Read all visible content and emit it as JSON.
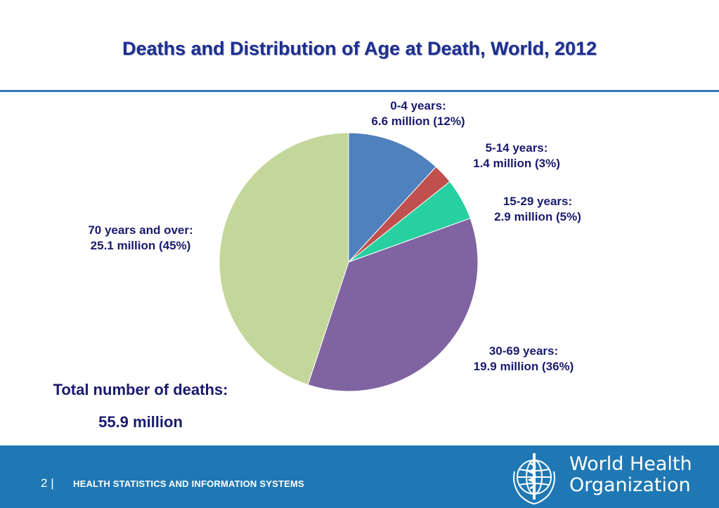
{
  "slide": {
    "page_number": "2",
    "footer_text": "HEALTH STATISTICS AND INFORMATION SYSTEMS",
    "org_name_line1": "World Health",
    "org_name_line2": "Organization",
    "total_label": "Total number of deaths:",
    "total_value": "55.9 million"
  },
  "chart_data": {
    "type": "pie",
    "title": "Deaths and Distribution of Age at Death, World, 2012",
    "slices": [
      {
        "label_line1": "0-4 years:",
        "label_line2": "6.6 million (12%)",
        "value": 6.6,
        "percent": 12,
        "color": "#4f81bd"
      },
      {
        "label_line1": "5-14 years:",
        "label_line2": "1.4 million (3%)",
        "value": 1.4,
        "percent": 3,
        "color": "#c0504d"
      },
      {
        "label_line1": "15-29 years:",
        "label_line2": "2.9 million (5%)",
        "value": 2.9,
        "percent": 5,
        "color": "#26d0a0"
      },
      {
        "label_line1": "30-69 years:",
        "label_line2": "19.9 million (36%)",
        "value": 19.9,
        "percent": 36,
        "color": "#8064a2"
      },
      {
        "label_line1": "70 years and over:",
        "label_line2": "25.1 million (45%)",
        "value": 25.1,
        "percent": 45,
        "color": "#c4d79b"
      }
    ]
  }
}
